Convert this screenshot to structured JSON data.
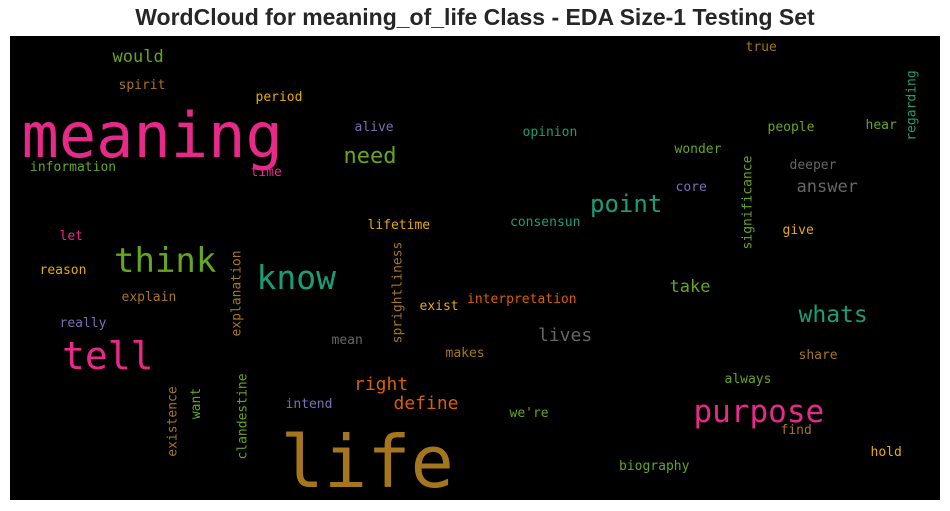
{
  "chart_data": {
    "type": "wordcloud",
    "title": "WordCloud for meaning_of_life Class - EDA Size-1 Testing Set",
    "background": "#000000",
    "words": [
      {
        "text": "life",
        "size": 72,
        "color": "#a6761d",
        "vertical": false
      },
      {
        "text": "meaning",
        "size": 62,
        "color": "#e7298a",
        "vertical": false
      },
      {
        "text": "tell",
        "size": 38,
        "color": "#e7298a",
        "vertical": false
      },
      {
        "text": "purpose",
        "size": 31,
        "color": "#e7298a",
        "vertical": false
      },
      {
        "text": "think",
        "size": 34,
        "color": "#66a61e",
        "vertical": false
      },
      {
        "text": "know",
        "size": 33,
        "color": "#1b9e77",
        "vertical": false
      },
      {
        "text": "point",
        "size": 24,
        "color": "#1b9e77",
        "vertical": false
      },
      {
        "text": "whats",
        "size": 23,
        "color": "#1b9e77",
        "vertical": false
      },
      {
        "text": "need",
        "size": 22,
        "color": "#66a61e",
        "vertical": false
      },
      {
        "text": "right",
        "size": 18,
        "color": "#d95f02",
        "vertical": false
      },
      {
        "text": "define",
        "size": 18,
        "color": "#d95f02",
        "vertical": false
      },
      {
        "text": "lives",
        "size": 18,
        "color": "#666666",
        "vertical": false
      },
      {
        "text": "answer",
        "size": 17,
        "color": "#666666",
        "vertical": false
      },
      {
        "text": "take",
        "size": 17,
        "color": "#66a61e",
        "vertical": false
      },
      {
        "text": "would",
        "size": 17,
        "color": "#66a61e",
        "vertical": false
      },
      {
        "text": "spirit",
        "size": 13,
        "color": "#a6761d",
        "vertical": false
      },
      {
        "text": "period",
        "size": 13,
        "color": "#e6ab02",
        "vertical": false
      },
      {
        "text": "information",
        "size": 13,
        "color": "#66a61e",
        "vertical": false
      },
      {
        "text": "time",
        "size": 13,
        "color": "#e7298a",
        "vertical": false
      },
      {
        "text": "alive",
        "size": 13,
        "color": "#7570b3",
        "vertical": false
      },
      {
        "text": "opinion",
        "size": 13,
        "color": "#1b9e77",
        "vertical": false
      },
      {
        "text": "wonder",
        "size": 13,
        "color": "#66a61e",
        "vertical": false
      },
      {
        "text": "people",
        "size": 13,
        "color": "#66a61e",
        "vertical": false
      },
      {
        "text": "hear",
        "size": 13,
        "color": "#66a61e",
        "vertical": false
      },
      {
        "text": "true",
        "size": 13,
        "color": "#a6761d",
        "vertical": false
      },
      {
        "text": "deeper",
        "size": 13,
        "color": "#666666",
        "vertical": false
      },
      {
        "text": "core",
        "size": 13,
        "color": "#7570b3",
        "vertical": false
      },
      {
        "text": "lifetime",
        "size": 13,
        "color": "#e6ab02",
        "vertical": false
      },
      {
        "text": "consensun",
        "size": 13,
        "color": "#1b9e77",
        "vertical": false
      },
      {
        "text": "give",
        "size": 13,
        "color": "#e6ab02",
        "vertical": false
      },
      {
        "text": "let",
        "size": 13,
        "color": "#e7298a",
        "vertical": false
      },
      {
        "text": "reason",
        "size": 13,
        "color": "#e6ab02",
        "vertical": false
      },
      {
        "text": "explain",
        "size": 13,
        "color": "#a6761d",
        "vertical": false
      },
      {
        "text": "really",
        "size": 13,
        "color": "#7570b3",
        "vertical": false
      },
      {
        "text": "mean",
        "size": 13,
        "color": "#666666",
        "vertical": false
      },
      {
        "text": "exist",
        "size": 13,
        "color": "#e6ab02",
        "vertical": false
      },
      {
        "text": "interpretation",
        "size": 13,
        "color": "#d95f02",
        "vertical": false
      },
      {
        "text": "makes",
        "size": 13,
        "color": "#a6761d",
        "vertical": false
      },
      {
        "text": "share",
        "size": 13,
        "color": "#a6761d",
        "vertical": false
      },
      {
        "text": "always",
        "size": 13,
        "color": "#66a61e",
        "vertical": false
      },
      {
        "text": "intend",
        "size": 13,
        "color": "#7570b3",
        "vertical": false
      },
      {
        "text": "we're",
        "size": 13,
        "color": "#66a61e",
        "vertical": false
      },
      {
        "text": "find",
        "size": 13,
        "color": "#a6761d",
        "vertical": false
      },
      {
        "text": "hold",
        "size": 13,
        "color": "#e6ab02",
        "vertical": false
      },
      {
        "text": "biography",
        "size": 13,
        "color": "#66a61e",
        "vertical": false
      },
      {
        "text": "regarding",
        "size": 13,
        "color": "#1b9e77",
        "vertical": true
      },
      {
        "text": "significance",
        "size": 13,
        "color": "#66a61e",
        "vertical": true
      },
      {
        "text": "explanation",
        "size": 13,
        "color": "#a6761d",
        "vertical": true
      },
      {
        "text": "sprightliness",
        "size": 13,
        "color": "#a6761d",
        "vertical": true
      },
      {
        "text": "existence",
        "size": 13,
        "color": "#a6761d",
        "vertical": true
      },
      {
        "text": "want",
        "size": 13,
        "color": "#66a61e",
        "vertical": true
      },
      {
        "text": "clandestine",
        "size": 13,
        "color": "#66a61e",
        "vertical": true
      }
    ]
  }
}
